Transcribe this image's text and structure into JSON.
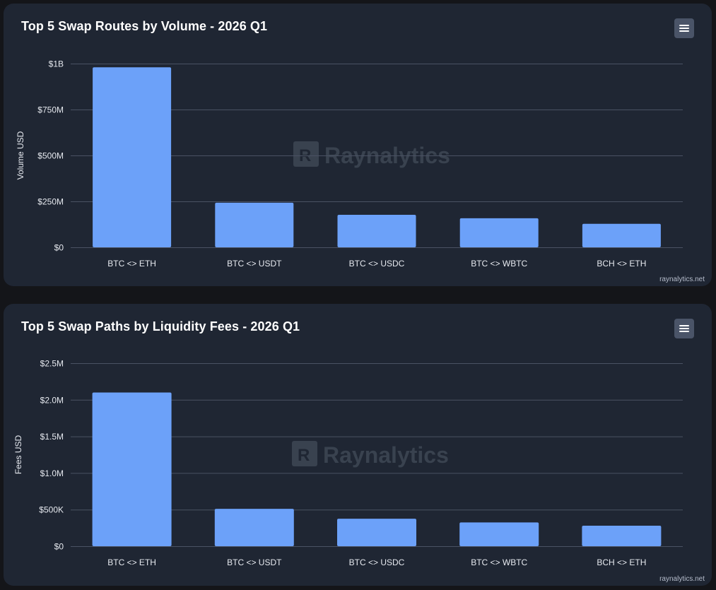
{
  "chart_data": [
    {
      "type": "bar",
      "title": "Top 5 Swap Routes by Volume - 2026 Q1",
      "categories": [
        "BTC <> ETH",
        "BTC <> USDT",
        "BTC <> USDC",
        "BTC <> WBTC",
        "BCH <> ETH"
      ],
      "values": [
        980000000,
        243000000,
        177000000,
        158000000,
        128000000
      ],
      "xlabel": "",
      "ylabel": "Volume USD",
      "ylim": [
        0,
        1000000000
      ],
      "yticks": [
        0,
        250000000,
        500000000,
        750000000,
        1000000000
      ],
      "ytick_labels": [
        "$0",
        "$250M",
        "$500M",
        "$750M",
        "$1B"
      ],
      "grid": true,
      "watermark": "Raynalytics",
      "credit": "raynalytics.net",
      "color": "#6ca1f9"
    },
    {
      "type": "bar",
      "title": "Top 5 Swap Paths by Liquidity Fees - 2026 Q1",
      "categories": [
        "BTC <> ETH",
        "BTC <> USDT",
        "BTC <> USDC",
        "BTC <> WBTC",
        "BCH <> ETH"
      ],
      "values": [
        2100000,
        510000,
        375000,
        325000,
        280000
      ],
      "xlabel": "",
      "ylabel": "Fees USD",
      "ylim": [
        0,
        2500000
      ],
      "yticks": [
        0,
        500000,
        1000000,
        1500000,
        2000000,
        2500000
      ],
      "ytick_labels": [
        "$0",
        "$500K",
        "$1.0M",
        "$1.5M",
        "$2.0M",
        "$2.5M"
      ],
      "grid": true,
      "watermark": "Raynalytics",
      "credit": "raynalytics.net",
      "color": "#6ca1f9"
    }
  ]
}
